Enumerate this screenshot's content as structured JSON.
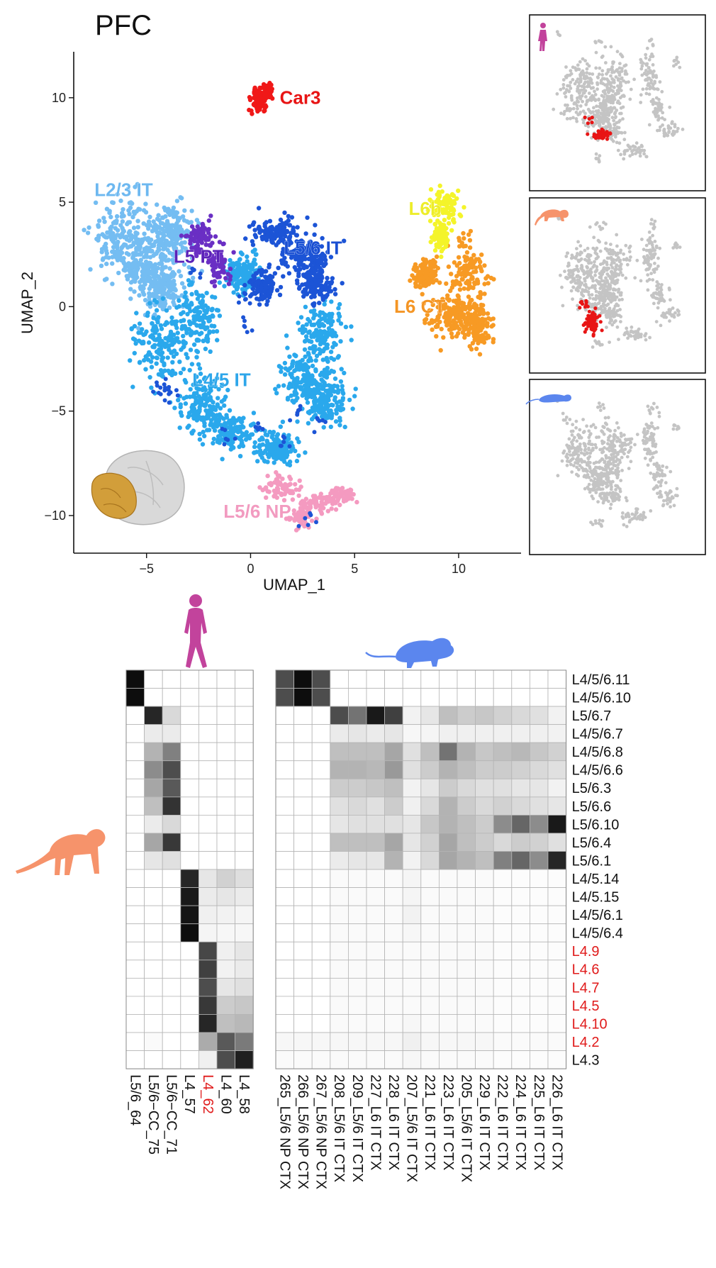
{
  "title": "PFC",
  "chart_data": [
    {
      "type": "scatter",
      "title": "PFC",
      "xlabel": "UMAP_1",
      "ylabel": "UMAP_2",
      "xlim": [
        -8.5,
        13
      ],
      "ylim": [
        -11.8,
        12.2
      ],
      "xticks": [
        -5,
        0,
        5,
        10
      ],
      "yticks": [
        -10,
        -5,
        0,
        5,
        10
      ],
      "xtick_labels": [
        "−5",
        "0",
        "5",
        "10"
      ],
      "ytick_labels": [
        "−10",
        "−5",
        "0",
        "5",
        "10"
      ],
      "clusters": [
        {
          "name": "Car3",
          "color": "#f01818",
          "label_color": "#e81515",
          "center": [
            0.5,
            10.0
          ],
          "label_at": [
            1.4,
            9.7
          ]
        },
        {
          "name": "L2/3 IT",
          "color": "#74bdf2",
          "label_color": "#6db8f0",
          "center": [
            -5.0,
            3.2
          ],
          "label_at": [
            -7.5,
            5.3
          ]
        },
        {
          "name": "L5 PT",
          "color": "#6a2fc4",
          "label_color": "#5b22b8",
          "center": [
            -1.8,
            2.5
          ],
          "label_at": [
            -3.7,
            2.1
          ]
        },
        {
          "name": "L5/6 IT",
          "color": "#1c54d6",
          "label_color": "#1a4fd2",
          "center": [
            1.6,
            2.8
          ],
          "label_at": [
            1.6,
            2.5
          ]
        },
        {
          "name": "L4/5 IT",
          "color": "#2aa8ec",
          "label_color": "#2ea6ea",
          "center": [
            -0.8,
            -3.2
          ],
          "label_at": [
            -2.8,
            -3.8
          ]
        },
        {
          "name": "L5/6 NP",
          "color": "#f49ac0",
          "label_color": "#f29bc0",
          "center": [
            2.8,
            -9.2
          ],
          "label_at": [
            -1.3,
            -10.1
          ]
        },
        {
          "name": "L6b",
          "color": "#f4f42a",
          "label_color": "#eded2a",
          "center": [
            9.4,
            4.4
          ],
          "label_at": [
            7.6,
            4.4
          ]
        },
        {
          "name": "L6 CT",
          "color": "#f79a24",
          "label_color": "#f49524",
          "center": [
            10.0,
            1.0
          ],
          "label_at": [
            6.9,
            -0.3
          ]
        }
      ]
    },
    {
      "type": "scatter",
      "panels": [
        {
          "species": "human",
          "highlight_color": "#e81515"
        },
        {
          "species": "macaque",
          "highlight_color": "#e81515"
        },
        {
          "species": "mouse",
          "highlight_color": "#e81515"
        }
      ]
    },
    {
      "type": "heatmap",
      "panel": "human",
      "columns": [
        "L5/6_64",
        "L5/6−CC_75",
        "L5/6−CC_71",
        "L4_57",
        "L4_62",
        "L4_60",
        "L4_58"
      ],
      "column_colors": [
        "#111",
        "#111",
        "#111",
        "#111",
        "#e01a1a",
        "#111",
        "#111"
      ],
      "rows": [
        "L4/5/6.11",
        "L4/5/6.10",
        "L5/6.7",
        "L4/5/6.7",
        "L4/5/6.8",
        "L4/5/6.6",
        "L5/6.3",
        "L5/6.6",
        "L5/6.10",
        "L5/6.4",
        "L5/6.1",
        "L4/5.14",
        "L4/5.15",
        "L4/5/6.1",
        "L4/5/6.4",
        "L4.9",
        "L4.6",
        "L4.7",
        "L4.5",
        "L4.10",
        "L4.2",
        "L4.3"
      ],
      "row_colors": [
        "#111",
        "#111",
        "#111",
        "#111",
        "#111",
        "#111",
        "#111",
        "#111",
        "#111",
        "#111",
        "#111",
        "#111",
        "#111",
        "#111",
        "#111",
        "#e01a1a",
        "#e01a1a",
        "#e01a1a",
        "#e01a1a",
        "#e01a1a",
        "#e01a1a",
        "#111"
      ],
      "values": [
        [
          0.95,
          0,
          0,
          0,
          0,
          0,
          0
        ],
        [
          0.95,
          0,
          0,
          0,
          0,
          0,
          0
        ],
        [
          0,
          0.85,
          0.15,
          0,
          0,
          0,
          0
        ],
        [
          0,
          0.08,
          0.08,
          0,
          0,
          0,
          0
        ],
        [
          0,
          0.3,
          0.5,
          0,
          0,
          0,
          0
        ],
        [
          0,
          0.45,
          0.7,
          0,
          0,
          0,
          0
        ],
        [
          0,
          0.35,
          0.65,
          0,
          0,
          0,
          0
        ],
        [
          0,
          0.25,
          0.8,
          0,
          0,
          0,
          0
        ],
        [
          0,
          0.08,
          0.15,
          0,
          0,
          0,
          0
        ],
        [
          0,
          0.35,
          0.78,
          0,
          0,
          0,
          0
        ],
        [
          0,
          0.1,
          0.12,
          0,
          0,
          0,
          0
        ],
        [
          0,
          0,
          0,
          0.85,
          0.1,
          0.18,
          0.13
        ],
        [
          0,
          0,
          0,
          0.9,
          0.08,
          0.1,
          0.08
        ],
        [
          0,
          0,
          0,
          0.92,
          0.06,
          0.05,
          0.04
        ],
        [
          0,
          0,
          0,
          0.95,
          0.04,
          0.03,
          0.03
        ],
        [
          0,
          0,
          0,
          0,
          0.72,
          0.06,
          0.1
        ],
        [
          0,
          0,
          0,
          0,
          0.75,
          0.05,
          0.08
        ],
        [
          0,
          0,
          0,
          0,
          0.7,
          0.1,
          0.12
        ],
        [
          0,
          0,
          0,
          0,
          0.78,
          0.2,
          0.22
        ],
        [
          0,
          0,
          0,
          0,
          0.85,
          0.25,
          0.28
        ],
        [
          0,
          0.02,
          0,
          0,
          0.33,
          0.65,
          0.52
        ],
        [
          0,
          0,
          0,
          0,
          0.06,
          0.7,
          0.88
        ]
      ]
    },
    {
      "type": "heatmap",
      "panel": "mouse",
      "columns": [
        "265_L5/6 NP CTX",
        "266_L5/6 NP CTX",
        "267_L5/6 NP CTX",
        "208_L5/6 IT CTX",
        "209_L5/6 IT CTX",
        "227_L6 IT CTX",
        "228_L6 IT CTX",
        "207_L5/6 IT CTX",
        "221_L6 IT CTX",
        "223_L6 IT CTX",
        "205_L5/6 IT CTX",
        "229_L6 IT CTX",
        "222_L6 IT CTX",
        "224_L6 IT CTX",
        "225_L6 IT CTX",
        "226_L6 IT CTX"
      ],
      "values": [
        [
          0.7,
          0.95,
          0.7,
          0,
          0,
          0,
          0,
          0,
          0,
          0,
          0,
          0,
          0,
          0,
          0,
          0
        ],
        [
          0.7,
          0.95,
          0.7,
          0,
          0,
          0,
          0,
          0,
          0,
          0,
          0,
          0,
          0,
          0,
          0,
          0
        ],
        [
          0,
          0,
          0,
          0.7,
          0.55,
          0.9,
          0.75,
          0.05,
          0.1,
          0.25,
          0.2,
          0.22,
          0.18,
          0.15,
          0.12,
          0.05
        ],
        [
          0,
          0,
          0,
          0.08,
          0.1,
          0.08,
          0.1,
          0.03,
          0.04,
          0.06,
          0.06,
          0.06,
          0.06,
          0.06,
          0.06,
          0.05
        ],
        [
          0,
          0,
          0,
          0.25,
          0.25,
          0.25,
          0.35,
          0.12,
          0.25,
          0.55,
          0.3,
          0.22,
          0.25,
          0.28,
          0.22,
          0.18
        ],
        [
          0,
          0,
          0,
          0.3,
          0.3,
          0.28,
          0.4,
          0.12,
          0.2,
          0.3,
          0.25,
          0.2,
          0.2,
          0.18,
          0.15,
          0.12
        ],
        [
          0,
          0,
          0,
          0.2,
          0.2,
          0.22,
          0.25,
          0.05,
          0.1,
          0.2,
          0.15,
          0.12,
          0.12,
          0.1,
          0.1,
          0.05
        ],
        [
          0,
          0,
          0,
          0.12,
          0.15,
          0.12,
          0.2,
          0.06,
          0.15,
          0.3,
          0.2,
          0.15,
          0.18,
          0.15,
          0.12,
          0.1
        ],
        [
          0,
          0,
          0,
          0.1,
          0.12,
          0.12,
          0.12,
          0.1,
          0.22,
          0.3,
          0.25,
          0.2,
          0.45,
          0.6,
          0.45,
          0.9
        ],
        [
          0,
          0,
          0,
          0.25,
          0.25,
          0.25,
          0.35,
          0.1,
          0.18,
          0.35,
          0.25,
          0.2,
          0.15,
          0.2,
          0.18,
          0.12
        ],
        [
          0,
          0,
          0,
          0.08,
          0.1,
          0.1,
          0.3,
          0.05,
          0.15,
          0.35,
          0.3,
          0.25,
          0.5,
          0.6,
          0.45,
          0.85
        ],
        [
          0,
          0,
          0,
          0.02,
          0.02,
          0.02,
          0.02,
          0.04,
          0.02,
          0.02,
          0.02,
          0.02,
          0.01,
          0.01,
          0.01,
          0.01
        ],
        [
          0,
          0,
          0,
          0.02,
          0.02,
          0.02,
          0.02,
          0.04,
          0.02,
          0.02,
          0.02,
          0.02,
          0.01,
          0.01,
          0.01,
          0.01
        ],
        [
          0,
          0,
          0,
          0.02,
          0.02,
          0.02,
          0.02,
          0.05,
          0.02,
          0.02,
          0.02,
          0.02,
          0.01,
          0.01,
          0.01,
          0.01
        ],
        [
          0,
          0,
          0,
          0.02,
          0.02,
          0.02,
          0.02,
          0.03,
          0.02,
          0.02,
          0.02,
          0.02,
          0.01,
          0.01,
          0.01,
          0.01
        ],
        [
          0,
          0,
          0,
          0.02,
          0.02,
          0.02,
          0.02,
          0.02,
          0.02,
          0.02,
          0.02,
          0.02,
          0.01,
          0.01,
          0.01,
          0.01
        ],
        [
          0,
          0,
          0,
          0.02,
          0.02,
          0.02,
          0.02,
          0.02,
          0.02,
          0.02,
          0.02,
          0.02,
          0.01,
          0.01,
          0.01,
          0.01
        ],
        [
          0,
          0,
          0,
          0.02,
          0.02,
          0.02,
          0.02,
          0.02,
          0.02,
          0.02,
          0.02,
          0.02,
          0.01,
          0.01,
          0.01,
          0.01
        ],
        [
          0,
          0,
          0,
          0.02,
          0.02,
          0.02,
          0.02,
          0.02,
          0.02,
          0.02,
          0.02,
          0.02,
          0.01,
          0.01,
          0.01,
          0.01
        ],
        [
          0,
          0,
          0,
          0.02,
          0.02,
          0.02,
          0.02,
          0.03,
          0.02,
          0.02,
          0.02,
          0.02,
          0.01,
          0.01,
          0.01,
          0.01
        ],
        [
          0.03,
          0.03,
          0.03,
          0.03,
          0.03,
          0.03,
          0.03,
          0.06,
          0.03,
          0.03,
          0.03,
          0.03,
          0.02,
          0.02,
          0.02,
          0.02
        ],
        [
          0.02,
          0.02,
          0.02,
          0.02,
          0.02,
          0.02,
          0.02,
          0.03,
          0.02,
          0.02,
          0.02,
          0.02,
          0.01,
          0.01,
          0.01,
          0.01
        ]
      ]
    }
  ],
  "colors": {
    "axis": "#111111",
    "grey_points": "#c4c4c4",
    "human": "#c2439c",
    "macaque": "#f6936b",
    "mouse": "#5b86ee",
    "brain": "#d9d9d9",
    "pfc_region": "#d29e3a"
  },
  "icons": [
    "human-icon",
    "macaque-icon",
    "mouse-icon",
    "brain-icon"
  ]
}
